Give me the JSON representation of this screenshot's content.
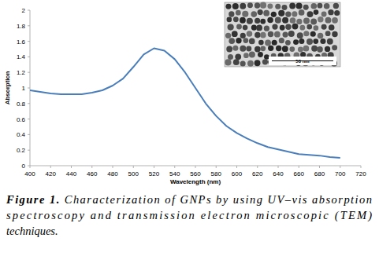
{
  "chart_data": {
    "type": "line",
    "x_label": "Wavelength (nm)",
    "y_label": "Absorption",
    "x": [
      400,
      410,
      420,
      430,
      440,
      450,
      460,
      470,
      480,
      490,
      500,
      510,
      520,
      530,
      540,
      550,
      560,
      570,
      580,
      590,
      600,
      610,
      620,
      630,
      640,
      650,
      660,
      670,
      680,
      690,
      700
    ],
    "values": [
      0.97,
      0.95,
      0.93,
      0.92,
      0.92,
      0.92,
      0.94,
      0.97,
      1.03,
      1.12,
      1.27,
      1.43,
      1.51,
      1.48,
      1.37,
      1.2,
      1.0,
      0.8,
      0.64,
      0.51,
      0.42,
      0.35,
      0.29,
      0.24,
      0.21,
      0.18,
      0.15,
      0.14,
      0.13,
      0.11,
      0.1
    ],
    "color": "#4a7ebb",
    "xlim": [
      400,
      720
    ],
    "xticks": [
      400,
      420,
      440,
      460,
      480,
      500,
      520,
      540,
      560,
      580,
      600,
      620,
      640,
      660,
      680,
      700,
      720
    ],
    "ylim": [
      0,
      2
    ],
    "yticks": [
      0,
      0.2,
      0.4,
      0.6,
      0.8,
      1,
      1.2,
      1.4,
      1.6,
      1.8,
      2
    ],
    "grid": false
  },
  "inset": {
    "scale_bar_label": "50 nm"
  },
  "caption": {
    "label": "Figure 1.",
    "lines": [
      "Characterization of GNPs by using UV–vis absorption",
      "spectroscopy and transmission electron microscopic (TEM)",
      "techniques."
    ]
  }
}
